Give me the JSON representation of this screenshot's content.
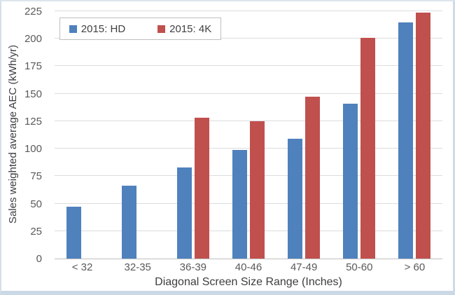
{
  "chart_data": {
    "type": "bar",
    "title": "",
    "categories": [
      "< 32",
      "32-35",
      "36-39",
      "40-46",
      "47-49",
      "50-60",
      "> 60"
    ],
    "series": [
      {
        "name": "2015: HD",
        "color": "#4F81BD",
        "values": [
          47,
          66,
          83,
          99,
          109,
          141,
          215
        ]
      },
      {
        "name": "2015: 4K",
        "color": "#C0504D",
        "values": [
          null,
          null,
          128,
          125,
          147,
          201,
          224
        ]
      }
    ],
    "xlabel": "Diagonal Screen Size Range (Inches)",
    "ylabel": "Sales weighted average AEC (kWh/yr)",
    "ylim": [
      0,
      225
    ],
    "yticks": [
      0,
      25,
      50,
      75,
      100,
      125,
      150,
      175,
      200,
      225
    ],
    "grid": true,
    "gridline_color": "#dcdcdc",
    "axis_line_color": "#bfbfbf",
    "tick_label_color": "#595959",
    "axis_title_color": "#3d3d3d",
    "legend_position": "top-left-inside"
  }
}
